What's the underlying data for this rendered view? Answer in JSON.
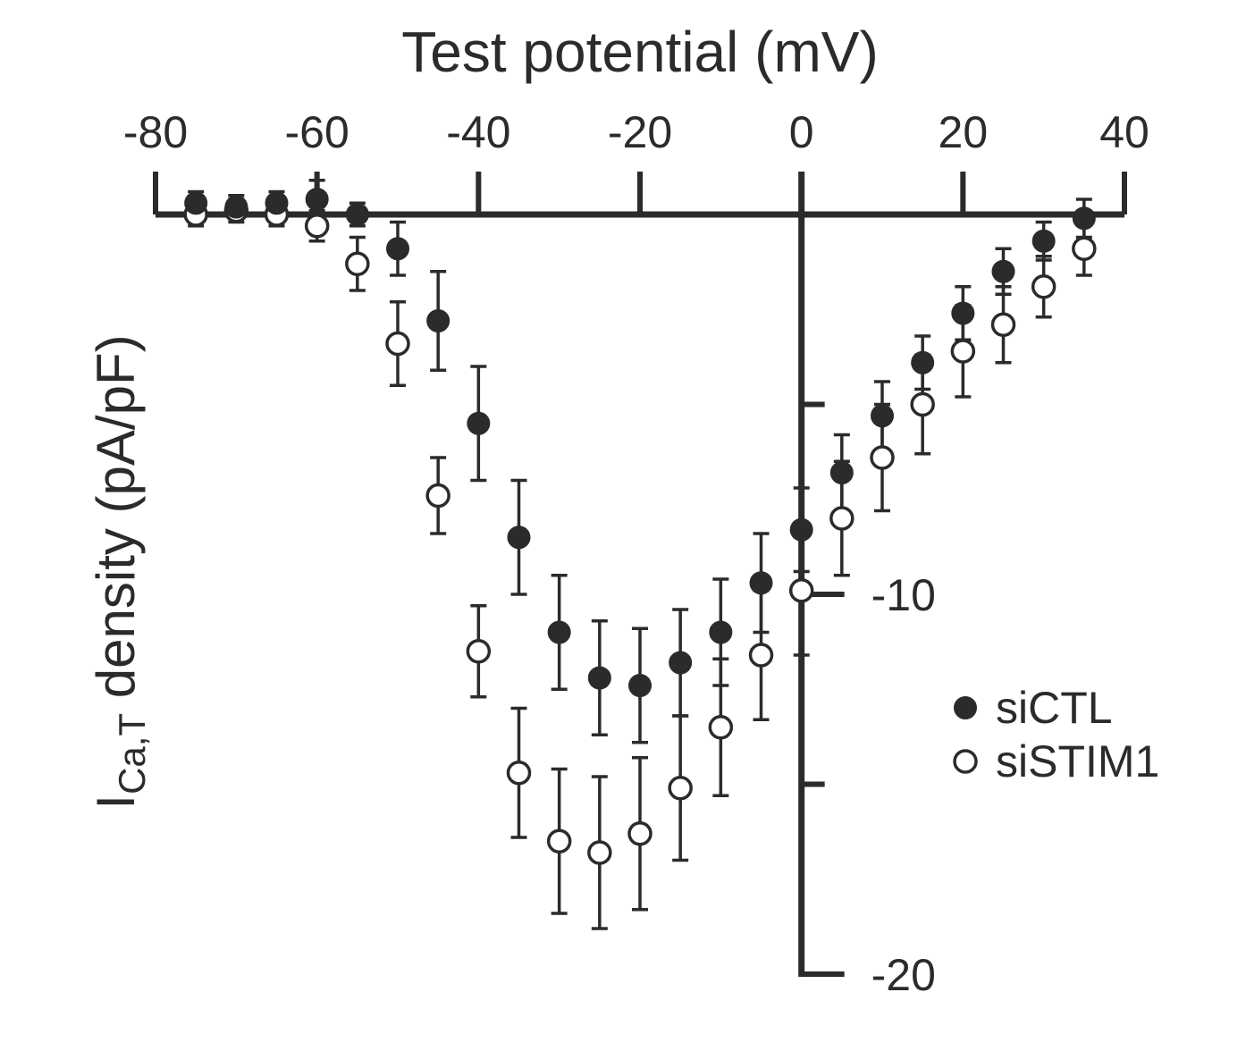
{
  "chart_data": {
    "type": "scatter",
    "title": "",
    "xlabel": "Test potential (mV)",
    "ylabel": {
      "main": "I",
      "subscript": "Ca,T",
      "rest": " density (pA/pF)"
    },
    "xlim": [
      -80,
      40
    ],
    "ylim": [
      -20,
      0
    ],
    "x_ticks": [
      -80,
      -60,
      -40,
      -20,
      0,
      20,
      40
    ],
    "y_tick_labels": [
      -10,
      -20
    ],
    "y_minor_ticks": [
      -5,
      -15
    ],
    "legend_position": "right",
    "series": [
      {
        "name": "siCTL",
        "marker": "filled-circle",
        "color": "#2b2b2e",
        "x": [
          -75,
          -70,
          -65,
          -60,
          -55,
          -50,
          -45,
          -40,
          -35,
          -30,
          -25,
          -20,
          -15,
          -10,
          -5,
          0,
          5,
          10,
          15,
          20,
          25,
          30,
          35
        ],
        "y": [
          0.3,
          0.2,
          0.3,
          0.4,
          0.0,
          -0.9,
          -2.8,
          -5.5,
          -8.5,
          -11.0,
          -12.2,
          -12.4,
          -11.8,
          -11.0,
          -9.7,
          -8.3,
          -6.8,
          -5.3,
          -3.9,
          -2.6,
          -1.5,
          -0.7,
          -0.1
        ],
        "err": [
          0.3,
          0.3,
          0.3,
          0.5,
          0.3,
          0.7,
          1.3,
          1.5,
          1.5,
          1.5,
          1.5,
          1.5,
          1.4,
          1.4,
          1.3,
          1.1,
          1.0,
          0.9,
          0.7,
          0.7,
          0.6,
          0.5,
          0.5
        ]
      },
      {
        "name": "siSTIM1",
        "marker": "open-circle",
        "color": "#2b2b2e",
        "x": [
          -75,
          -70,
          -65,
          -60,
          -55,
          -50,
          -45,
          -40,
          -35,
          -30,
          -25,
          -20,
          -15,
          -10,
          -5,
          0,
          5,
          10,
          15,
          20,
          25,
          30,
          35
        ],
        "y": [
          0.0,
          0.1,
          0.0,
          -0.3,
          -1.3,
          -3.4,
          -7.4,
          -11.5,
          -14.7,
          -16.5,
          -16.8,
          -16.3,
          -15.1,
          -13.5,
          -11.6,
          -9.9,
          -8.0,
          -6.4,
          -5.0,
          -3.6,
          -2.9,
          -1.9,
          -0.9
        ],
        "err": [
          0.3,
          0.3,
          0.3,
          0.4,
          0.7,
          1.1,
          1.0,
          1.2,
          1.7,
          1.9,
          2.0,
          2.0,
          1.9,
          1.8,
          1.7,
          1.7,
          1.5,
          1.4,
          1.3,
          1.2,
          1.0,
          0.8,
          0.7
        ]
      }
    ]
  }
}
